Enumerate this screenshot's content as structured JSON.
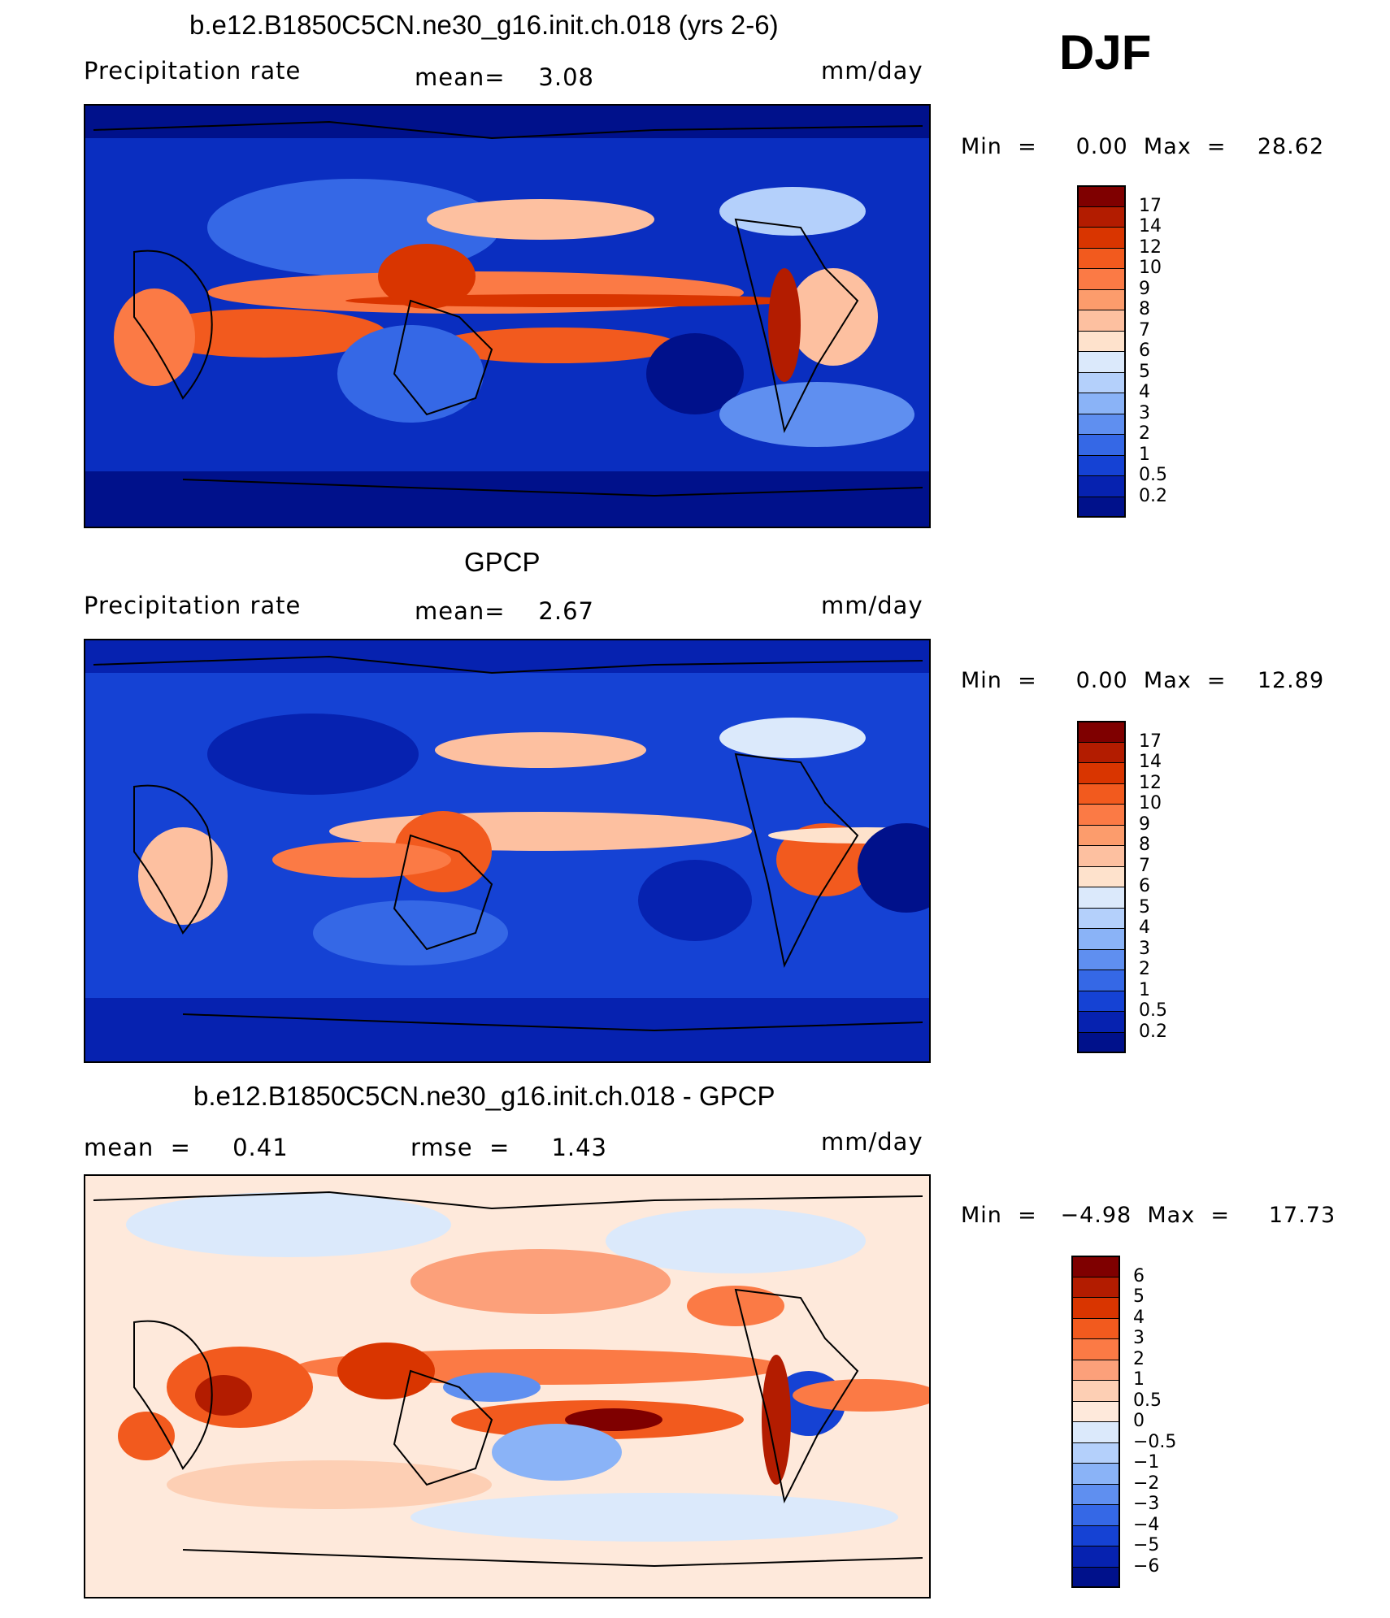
{
  "season": "DJF",
  "panels": [
    {
      "title": "b.e12.B1850C5CN.ne30_g16.init.ch.018 (yrs 2-6)",
      "left_label": "Precipitation  rate",
      "center_label": "mean=    3.08",
      "units": "mm/day",
      "minmax": "Min  =     0.00  Max  =    28.62",
      "map_type": "precipitation",
      "levels": [
        "17",
        "14",
        "12",
        "10",
        "9",
        "8",
        "7",
        "6",
        "5",
        "4",
        "3",
        "2",
        "1",
        "0.5",
        "0.2"
      ],
      "colors": [
        "#7f0000",
        "#b31c00",
        "#d93500",
        "#f25a1e",
        "#fb7a45",
        "#fc9c6c",
        "#fdc0a0",
        "#fee2cc",
        "#dbe9fb",
        "#b4d0fb",
        "#8ab3f7",
        "#5f8ff0",
        "#3568e6",
        "#1542d4",
        "#0622b0",
        "#00118b"
      ]
    },
    {
      "title": "GPCP",
      "left_label": "Precipitation  rate",
      "center_label": "mean=    2.67",
      "units": "mm/day",
      "minmax": "Min  =     0.00  Max  =    12.89",
      "map_type": "observed",
      "levels": [
        "17",
        "14",
        "12",
        "10",
        "9",
        "8",
        "7",
        "6",
        "5",
        "4",
        "3",
        "2",
        "1",
        "0.5",
        "0.2"
      ],
      "colors": [
        "#7f0000",
        "#b31c00",
        "#d93500",
        "#f25a1e",
        "#fb7a45",
        "#fc9c6c",
        "#fdc0a0",
        "#fee2cc",
        "#dbe9fb",
        "#b4d0fb",
        "#8ab3f7",
        "#5f8ff0",
        "#3568e6",
        "#1542d4",
        "#0622b0",
        "#00118b"
      ]
    },
    {
      "title": "b.e12.B1850C5CN.ne30_g16.init.ch.018 - GPCP",
      "left_label": "mean  =     0.41",
      "center_label": "rmse  =     1.43",
      "units": "mm/day",
      "minmax": "Min  =   −4.98  Max  =     17.73",
      "map_type": "difference",
      "levels": [
        "6",
        "5",
        "4",
        "3",
        "2",
        "1",
        "0.5",
        "0",
        "−0.5",
        "−1",
        "−2",
        "−3",
        "−4",
        "−5",
        "−6"
      ],
      "colors": [
        "#7f0000",
        "#b31c00",
        "#d93500",
        "#f25a1e",
        "#fb7a45",
        "#fca07a",
        "#fdcfb4",
        "#fee9db",
        "#dbe9fb",
        "#b4d0fb",
        "#8ab3f7",
        "#5f8ff0",
        "#3568e6",
        "#1542d4",
        "#0622b0",
        "#00118b"
      ]
    }
  ]
}
